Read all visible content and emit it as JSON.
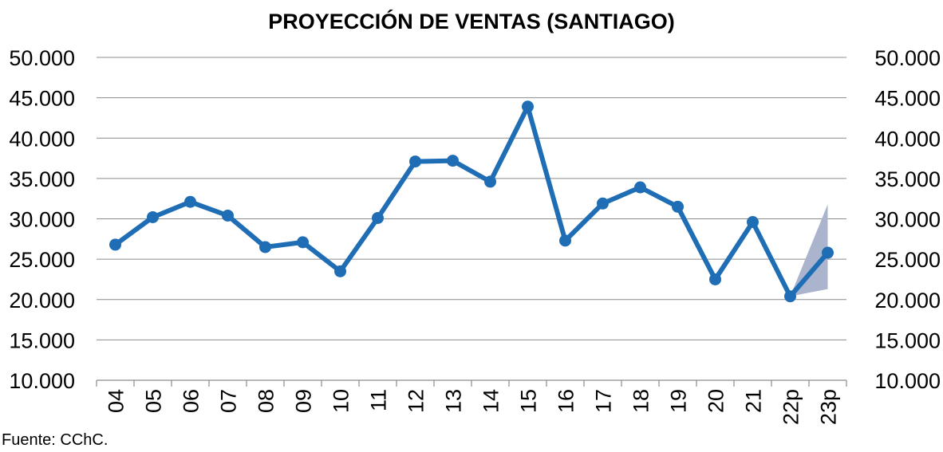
{
  "chart_data": {
    "type": "line",
    "title": "PROYECCIÓN DE VENTAS (SANTIAGO)",
    "source": "Fuente:  CChC.",
    "categories": [
      "04",
      "05",
      "06",
      "07",
      "08",
      "09",
      "10",
      "11",
      "12",
      "13",
      "14",
      "15",
      "16",
      "17",
      "18",
      "19",
      "20",
      "21",
      "22p",
      "23p"
    ],
    "series": [
      {
        "values": [
          26800,
          30200,
          32100,
          30400,
          26500,
          27100,
          23500,
          30100,
          37100,
          37200,
          34600,
          43900,
          27300,
          31900,
          33900,
          31500,
          22500,
          29600,
          20400,
          25800
        ],
        "color": "#1f6eb5"
      }
    ],
    "projection_band": {
      "from_category": "22p",
      "to_category": "23p",
      "low": [
        20400,
        21300
      ],
      "high": [
        20400,
        31800
      ],
      "color": "#aab4cc"
    },
    "y_ticks": [
      "10.000",
      "15.000",
      "20.000",
      "25.000",
      "30.000",
      "35.000",
      "40.000",
      "45.000",
      "50.000"
    ],
    "y_tick_values": [
      10000,
      15000,
      20000,
      25000,
      30000,
      35000,
      40000,
      45000,
      50000
    ],
    "ylim": [
      10000,
      50000
    ],
    "grid": true,
    "right_axis_mirror": true
  }
}
